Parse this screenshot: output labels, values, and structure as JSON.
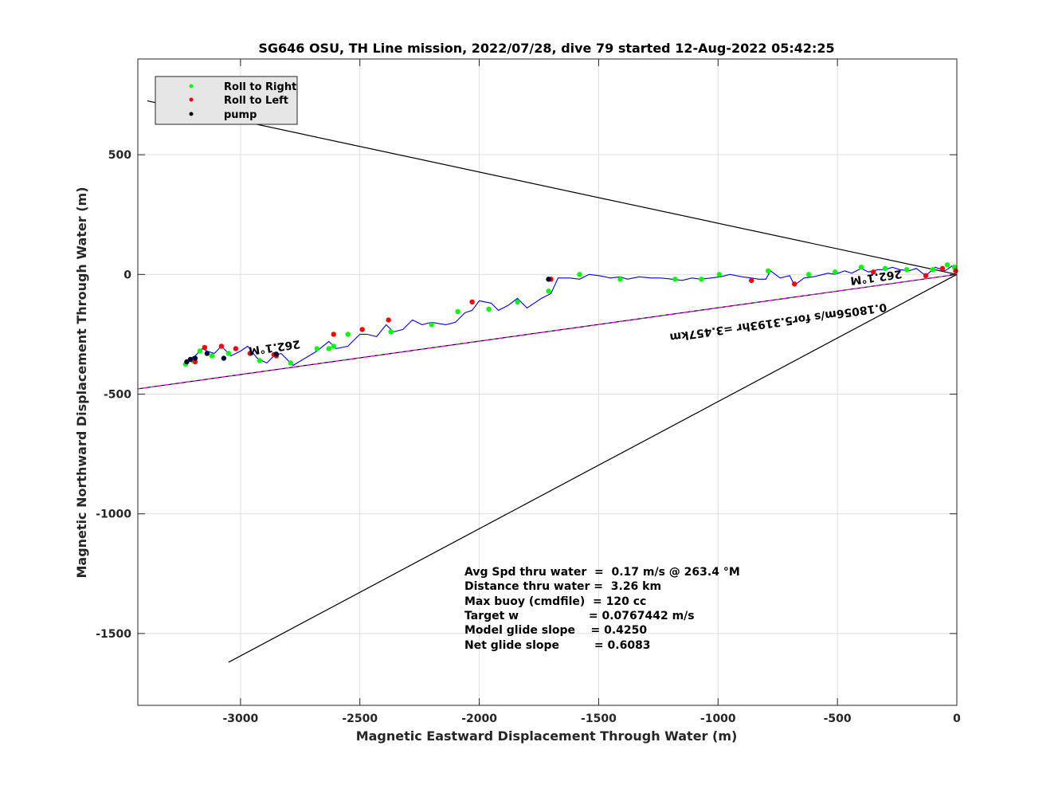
{
  "chart_data": {
    "type": "line",
    "title": "SG646 OSU, TH Line mission, 2022/07/28, dive 79 started 12-Aug-2022 05:42:25",
    "xlabel": "Magnetic Eastward Displacement Through Water (m)",
    "ylabel": "Magnetic Northward Displacement Through Water (m)",
    "xlim": [
      -3430,
      0
    ],
    "ylim": [
      -1800,
      900
    ],
    "x_ticks": [
      -3000,
      -2500,
      -2000,
      -1500,
      -1000,
      -500,
      0
    ],
    "x_tick_labels": [
      "-3000",
      "-2500",
      "-2000",
      "-1500",
      "-1000",
      "-500",
      "0"
    ],
    "y_ticks": [
      500,
      0,
      -500,
      -1000,
      -1500
    ],
    "y_tick_labels": [
      "500",
      "0",
      "-500",
      "-1000",
      "-1500"
    ],
    "grid": true,
    "legend_position": "top-left",
    "legend": [
      {
        "label": "Roll to Right",
        "color": "#00ff00"
      },
      {
        "label": "Roll to Left",
        "color": "#ff0000"
      },
      {
        "label": "pump",
        "color": "#000000"
      }
    ],
    "lines": [
      {
        "x": [
          0,
          -3390
        ],
        "y": [
          0,
          725
        ],
        "color": "#000000"
      },
      {
        "x": [
          0,
          -3050
        ],
        "y": [
          0,
          -1620
        ],
        "color": "#000000"
      },
      {
        "x": [
          0,
          -3430
        ],
        "y": [
          0,
          -478
        ],
        "color": "#000000"
      },
      {
        "x": [
          0,
          -3430
        ],
        "y": [
          0,
          -478
        ],
        "color": "#ff00ff",
        "dashed": true
      }
    ],
    "track": {
      "color": "#0000ff",
      "x": [
        0,
        -20,
        -50,
        -90,
        -130,
        -170,
        -200,
        -240,
        -270,
        -300,
        -330,
        -370,
        -400,
        -440,
        -470,
        -510,
        -540,
        -580,
        -600,
        -640,
        -680,
        -700,
        -740,
        -780,
        -800,
        -830,
        -860,
        -900,
        -950,
        -990,
        -1030,
        -1070,
        -1110,
        -1150,
        -1190,
        -1240,
        -1280,
        -1330,
        -1380,
        -1410,
        -1450,
        -1500,
        -1540,
        -1580,
        -1620,
        -1670,
        -1700,
        -1740,
        -1770,
        -1800,
        -1840,
        -1880,
        -1920,
        -1950,
        -2000,
        -2030,
        -2060,
        -2100,
        -2140,
        -2200,
        -2240,
        -2280,
        -2320,
        -2360,
        -2390,
        -2430,
        -2470,
        -2500,
        -2550,
        -2600,
        -2630,
        -2680,
        -2730,
        -2780,
        -2830,
        -2860,
        -2890,
        -2930,
        -2970,
        -3000,
        -3040,
        -3080,
        -3110,
        -3140,
        -3160,
        -3190,
        -3210,
        -3230
      ],
      "y": [
        5,
        35,
        15,
        30,
        -5,
        25,
        15,
        20,
        30,
        20,
        20,
        10,
        25,
        5,
        15,
        0,
        5,
        -5,
        -10,
        -15,
        -45,
        -5,
        -15,
        15,
        -20,
        -20,
        -15,
        -10,
        0,
        -10,
        -15,
        -20,
        -15,
        -25,
        -20,
        -15,
        -15,
        -10,
        -20,
        -10,
        -15,
        -5,
        0,
        -20,
        -15,
        -15,
        -80,
        -100,
        -120,
        -140,
        -100,
        -130,
        -150,
        -120,
        -110,
        -150,
        -160,
        -200,
        -210,
        -200,
        -210,
        -190,
        -230,
        -240,
        -210,
        -260,
        -250,
        -250,
        -300,
        -310,
        -280,
        -320,
        -350,
        -380,
        -330,
        -340,
        -370,
        -350,
        -300,
        -320,
        -340,
        -300,
        -330,
        -320,
        -310,
        -340,
        -350,
        -370
      ]
    },
    "roll_right_points": {
      "x": [
        -10,
        -40,
        -100,
        -210,
        -300,
        -400,
        -510,
        -620,
        -790,
        -995,
        -1070,
        -1180,
        -1410,
        -1580,
        -1710,
        -1840,
        -1960,
        -2090,
        -2200,
        -2370,
        -2550,
        -2610,
        -2680,
        -2790,
        -2920,
        -3050,
        -3120,
        -3170,
        -3230,
        -2630,
        -3200
      ],
      "y": [
        30,
        40,
        20,
        20,
        25,
        30,
        10,
        0,
        15,
        0,
        -20,
        -20,
        -20,
        0,
        -70,
        -115,
        -145,
        -155,
        -210,
        -240,
        -250,
        -300,
        -310,
        -370,
        -360,
        -330,
        -340,
        -320,
        -375,
        -310,
        -360
      ]
    },
    "roll_left_points": {
      "x": [
        -5,
        -60,
        -130,
        -350,
        -680,
        -860,
        -1700,
        -2030,
        -2380,
        -2490,
        -2610,
        -2850,
        -2960,
        -3020,
        -3080,
        -3150,
        -3190,
        -2860
      ],
      "y": [
        15,
        25,
        -5,
        10,
        -40,
        -25,
        -20,
        -115,
        -190,
        -230,
        -250,
        -340,
        -330,
        -310,
        -300,
        -305,
        -365,
        -335
      ]
    },
    "pump_points": {
      "x": [
        -1710,
        -3070,
        -3140,
        -3190,
        -3210,
        -3225,
        -2850
      ],
      "y": [
        -20,
        -350,
        -330,
        -350,
        -355,
        -365,
        -333
      ]
    },
    "annotations": [
      {
        "text": "262.1°M",
        "x": -2860,
        "y": -290,
        "angle": 172
      },
      {
        "text": "262.1°M",
        "x": -340,
        "y": 3,
        "angle": 172
      },
      {
        "text": "0.18056m/s for5.3193hr =3.457km",
        "x": -750,
        "y": -185,
        "angle": 172
      }
    ],
    "stats": [
      "Avg Spd thru water  =  0.17 m/s @ 263.4 °M",
      "Distance thru water =  3.26 km",
      "Max buoy (cmdfile)  = 120 cc",
      "Target w                  = 0.0767442 m/s",
      "Model glide slope    = 0.4250",
      "Net glide slope         = 0.6083"
    ]
  }
}
